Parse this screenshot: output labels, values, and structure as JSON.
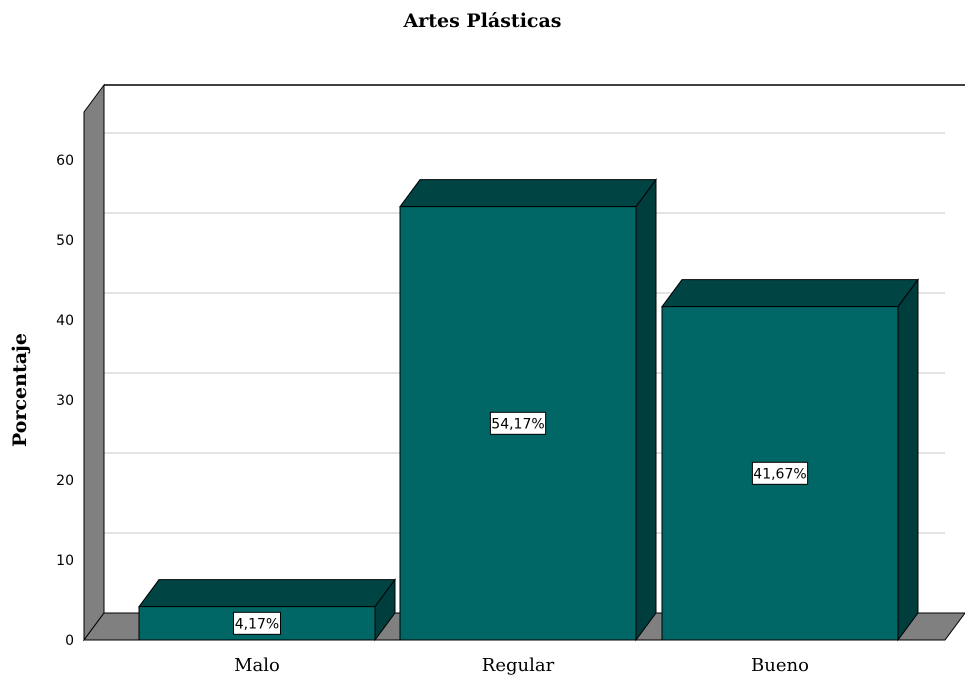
{
  "chart_data": {
    "type": "bar",
    "title": "Artes Plásticas",
    "xlabel": "",
    "ylabel": "Porcentaje",
    "categories": [
      "Malo",
      "Regular",
      "Bueno"
    ],
    "values": [
      4.17,
      54.17,
      41.67
    ],
    "data_labels": [
      "4,17%",
      "54,17%",
      "41,67%"
    ],
    "yticks": [
      "0",
      "10",
      "20",
      "30",
      "40",
      "50",
      "60"
    ],
    "ylim": [
      0,
      66
    ],
    "grid": true,
    "legend": "none",
    "colors": {
      "bar_front": "#006666",
      "bar_top": "#004444",
      "bar_side": "#003d3d",
      "wall": "#808080",
      "gridline": "#c8c8c8"
    }
  }
}
